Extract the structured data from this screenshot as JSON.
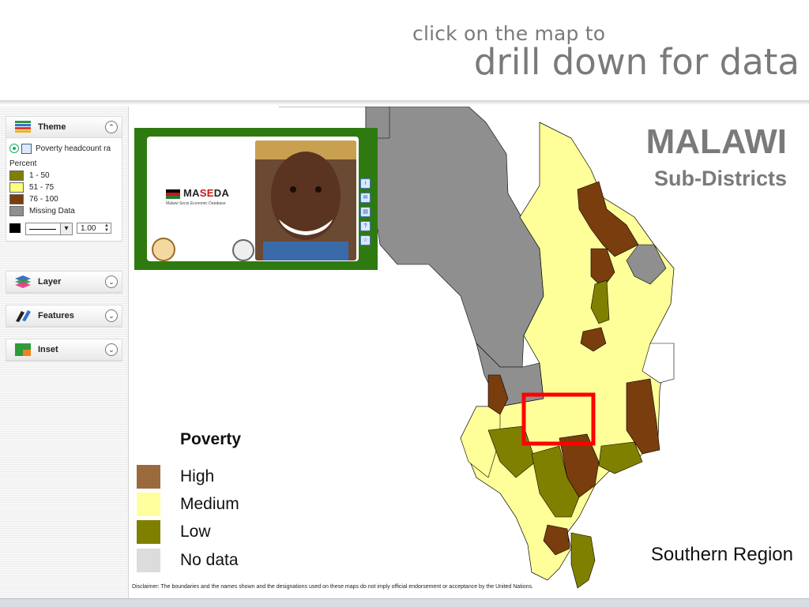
{
  "header": {
    "line1": "click on the map to",
    "line2": "drill down for data"
  },
  "map": {
    "title": "MALAWI",
    "subtitle": "Sub-Districts",
    "region_label": "Southern Region",
    "disclaimer": "Disclaimer: The boundaries and the names shown and the designations used on these maps do not imply official endorsement or acceptance by the United Nations.",
    "legend": {
      "title": "Poverty",
      "items": [
        {
          "label": "High",
          "color": "#9b6a3c"
        },
        {
          "label": "Medium",
          "color": "#ffff9e"
        },
        {
          "label": "Low",
          "color": "#808000"
        },
        {
          "label": "No data",
          "color": "#dcdcdc"
        }
      ]
    },
    "colors": {
      "high": "#7a3d0e",
      "medium": "#ffff99",
      "low": "#808000",
      "no_data": "#8f8f8f",
      "highlight": "#ff0000"
    }
  },
  "panel": {
    "theme": {
      "title": "Theme",
      "indicator": "Poverty headcount ra",
      "unit_label": "Percent",
      "classes": [
        {
          "label": "1 - 50",
          "color": "#808000"
        },
        {
          "label": "51 - 75",
          "color": "#ffff7a"
        },
        {
          "label": "76 - 100",
          "color": "#7a3d0e"
        },
        {
          "label": "Missing Data",
          "color": "#8f8f8f"
        }
      ],
      "line_width": "1.00"
    },
    "layer": {
      "title": "Layer"
    },
    "features": {
      "title": "Features"
    },
    "inset": {
      "title": "Inset"
    }
  },
  "banner": {
    "brand_pre": "MA",
    "brand_mid": "SE",
    "brand_post": "DA",
    "brand_sub": "Malawi Socio Economic Database"
  },
  "icons": {
    "theme": "theme-layers-icon",
    "layer": "stacked-layers-icon",
    "features": "features-pin-icon",
    "inset": "inset-map-icon"
  }
}
